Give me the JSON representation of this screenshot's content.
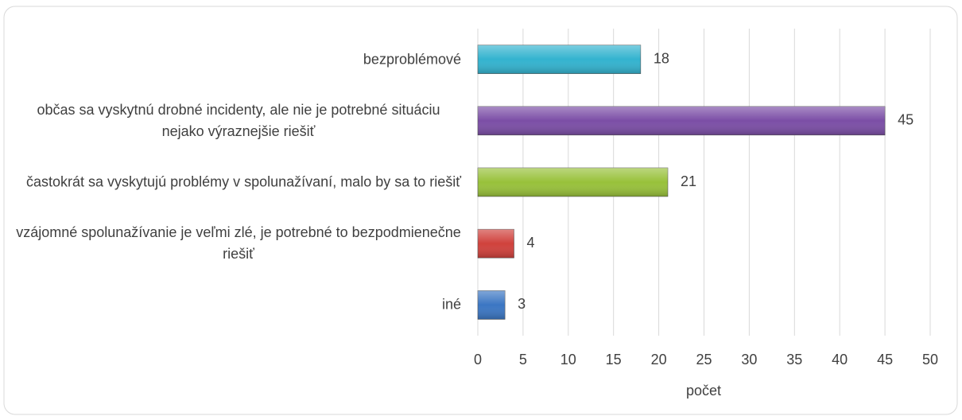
{
  "chart_data": {
    "type": "bar",
    "orientation": "horizontal",
    "categories": [
      "bezproblémové",
      "občas sa vyskytnú drobné incidenty, ale nie je potrebné situáciu nejako výraznejšie riešiť",
      "častokrát sa vyskytujú problémy v spolunažívaní, malo by sa to riešiť",
      "vzájomné spolunažívanie je veľmi zlé, je potrebné to bezpodmienečne riešiť",
      "iné"
    ],
    "values": [
      18,
      45,
      21,
      4,
      3
    ],
    "colors": [
      "#33b3cf",
      "#7b4ea6",
      "#98c13a",
      "#d0413c",
      "#3b76c3"
    ],
    "xlabel": "počet",
    "xlim": [
      0,
      50
    ],
    "xticks": [
      0,
      5,
      10,
      15,
      20,
      25,
      30,
      35,
      40,
      45,
      50
    ],
    "grid": true
  }
}
